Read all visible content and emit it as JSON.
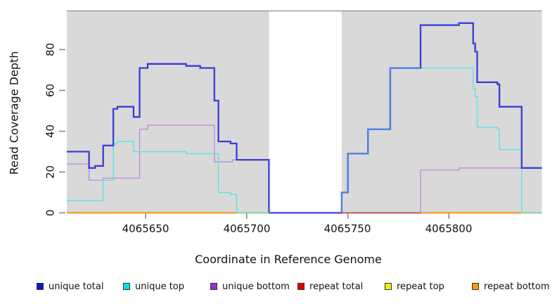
{
  "chart_data": {
    "type": "line",
    "subtype": "step-coverage",
    "title": "",
    "xlabel": "Coordinate in Reference Genome",
    "ylabel": "Read Coverage Depth",
    "x_axis": {
      "min": 4065611,
      "max": 4065846,
      "ticks": [
        4065650,
        4065700,
        4065750,
        4065800
      ],
      "tick_labels": [
        "4065650",
        "4065700",
        "4065750",
        "4065800"
      ]
    },
    "y_axis": {
      "min": 0,
      "max": 99,
      "ticks": [
        0,
        20,
        40,
        60,
        80
      ],
      "tick_labels": [
        "0",
        "20",
        "40",
        "60",
        "80"
      ]
    },
    "panel_background": "#ffffff",
    "shaded_regions": [
      {
        "from": 4065611,
        "to": 4065711,
        "color": "#d9d9d9"
      },
      {
        "from": 4065747,
        "to": 4065846,
        "color": "#d9d9d9"
      }
    ],
    "gap_region": {
      "from": 4065711,
      "to": 4065747,
      "color": "#ffffff"
    },
    "top_border_color": "#8f8f8f",
    "legend_position": "bottom",
    "series": [
      {
        "name": "unique_total",
        "label": "unique total",
        "line_color": "#3b3bd9",
        "legend_color": "#1212cc",
        "width": 2.3,
        "steps": [
          [
            4065611,
            30
          ],
          [
            4065622,
            22
          ],
          [
            4065625,
            23
          ],
          [
            4065629,
            33
          ],
          [
            4065634,
            51
          ],
          [
            4065636,
            52
          ],
          [
            4065644,
            47
          ],
          [
            4065647,
            71
          ],
          [
            4065651,
            73
          ],
          [
            4065670,
            72
          ],
          [
            4065677,
            71
          ],
          [
            4065684,
            55
          ],
          [
            4065686,
            35
          ],
          [
            4065692,
            34
          ],
          [
            4065695,
            26
          ],
          [
            4065711,
            0
          ],
          [
            4065747,
            10
          ],
          [
            4065750,
            29
          ],
          [
            4065760,
            41
          ],
          [
            4065771,
            71
          ],
          [
            4065786,
            92
          ],
          [
            4065805,
            93
          ],
          [
            4065812,
            83
          ],
          [
            4065813,
            79
          ],
          [
            4065814,
            64
          ],
          [
            4065824,
            63
          ],
          [
            4065825,
            52
          ],
          [
            4065836,
            22
          ]
        ]
      },
      {
        "name": "unique_top",
        "label": "unique top",
        "line_color": "#5ce4e4",
        "legend_color": "#00e6e6",
        "width": 1.4,
        "steps": [
          [
            4065611,
            6
          ],
          [
            4065629,
            16
          ],
          [
            4065634,
            34
          ],
          [
            4065636,
            35
          ],
          [
            4065644,
            30
          ],
          [
            4065670,
            29
          ],
          [
            4065686,
            10
          ],
          [
            4065692,
            9
          ],
          [
            4065695,
            0
          ],
          [
            4065747,
            10
          ],
          [
            4065750,
            29
          ],
          [
            4065760,
            41
          ],
          [
            4065771,
            71
          ],
          [
            4065812,
            61
          ],
          [
            4065813,
            57
          ],
          [
            4065814,
            42
          ],
          [
            4065824,
            41
          ],
          [
            4065825,
            31
          ],
          [
            4065836,
            0
          ]
        ]
      },
      {
        "name": "unique_bottom",
        "label": "unique bottom",
        "line_color": "#bd8ce0",
        "legend_color": "#9a32cd",
        "width": 1.4,
        "steps": [
          [
            4065611,
            24
          ],
          [
            4065622,
            16
          ],
          [
            4065629,
            17
          ],
          [
            4065647,
            41
          ],
          [
            4065651,
            43
          ],
          [
            4065684,
            25
          ],
          [
            4065693,
            26
          ],
          [
            4065711,
            0
          ],
          [
            4065786,
            21
          ],
          [
            4065805,
            22
          ]
        ]
      },
      {
        "name": "repeat_total",
        "label": "repeat total",
        "line_color": "#cc2222",
        "legend_color": "#e60000",
        "width": 1.4,
        "steps": [
          [
            4065611,
            0
          ]
        ]
      },
      {
        "name": "repeat_top",
        "label": "repeat top",
        "line_color": "#f0f000",
        "legend_color": "#f2f200",
        "width": 1.4,
        "steps": [
          [
            4065611,
            0
          ]
        ]
      },
      {
        "name": "repeat_bottom",
        "label": "repeat bottom",
        "line_color": "#ff9505",
        "legend_color": "#ff9a00",
        "width": 1.7,
        "steps": [
          [
            4065611,
            0
          ]
        ]
      }
    ],
    "render_overlays": {
      "coincident_blue_cyan": {
        "color": "#4d82e4",
        "width": 2.3,
        "end": 4065786,
        "steps": [
          [
            4065747,
            0
          ],
          [
            4065747,
            10
          ],
          [
            4065750,
            29
          ],
          [
            4065760,
            41
          ],
          [
            4065771,
            71
          ]
        ]
      },
      "zero_line_segments": [
        {
          "from": 4065695,
          "to": 4065711,
          "color": "#7ed3a6"
        },
        {
          "from": 4065711,
          "to": 4065747,
          "color": "#4343d2"
        },
        {
          "from": 4065747,
          "to": 4065786,
          "color": "#c24b5e"
        },
        {
          "from": 4065836,
          "to": 4065846,
          "color": "#7ed3a6"
        }
      ]
    }
  }
}
